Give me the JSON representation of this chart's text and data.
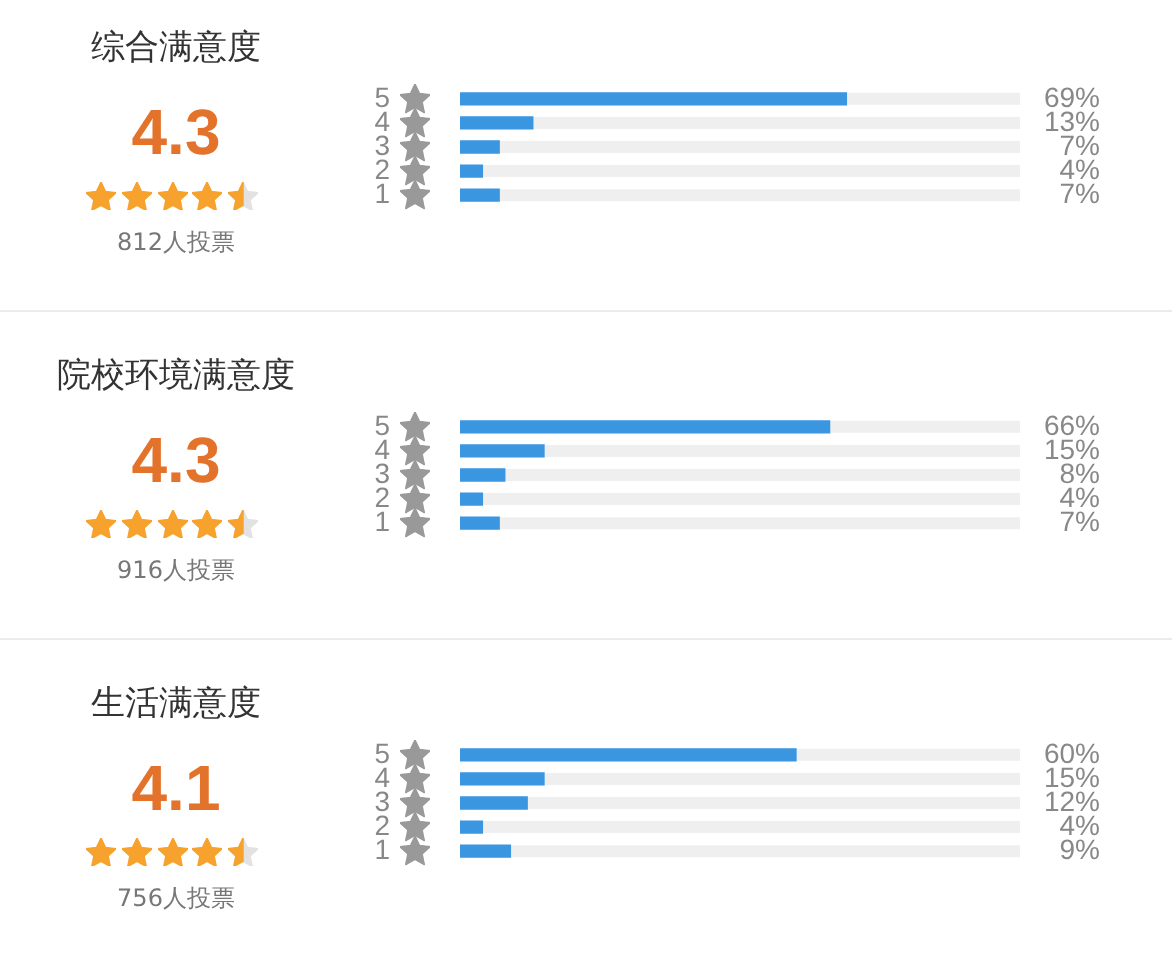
{
  "chart_data": [
    {
      "type": "bar",
      "orientation": "horizontal",
      "title": "综合满意度",
      "annotations": [
        "4.3",
        "812人投票"
      ],
      "categories": [
        "5",
        "4",
        "3",
        "2",
        "1"
      ],
      "values": [
        69,
        13,
        7,
        4,
        7
      ],
      "value_labels": [
        "69%",
        "13%",
        "7%",
        "4%",
        "7%"
      ],
      "color": "#3b96e2",
      "xlim": [
        0,
        100
      ],
      "tick_labels": "y"
    },
    {
      "type": "bar",
      "orientation": "horizontal",
      "title": "院校环境满意度",
      "annotations": [
        "4.3",
        "916人投票"
      ],
      "categories": [
        "5",
        "4",
        "3",
        "2",
        "1"
      ],
      "values": [
        66,
        15,
        8,
        4,
        7
      ],
      "value_labels": [
        "66%",
        "15%",
        "8%",
        "4%",
        "7%"
      ],
      "color": "#3b96e2",
      "xlim": [
        0,
        100
      ],
      "tick_labels": "y"
    },
    {
      "type": "bar",
      "orientation": "horizontal",
      "title": "生活满意度",
      "annotations": [
        "4.1",
        "756人投票"
      ],
      "categories": [
        "5",
        "4",
        "3",
        "2",
        "1"
      ],
      "values": [
        60,
        15,
        12,
        4,
        9
      ],
      "value_labels": [
        "60%",
        "15%",
        "12%",
        "4%",
        "9%"
      ],
      "color": "#3b96e2",
      "xlim": [
        0,
        100
      ],
      "tick_labels": "y"
    }
  ]
}
